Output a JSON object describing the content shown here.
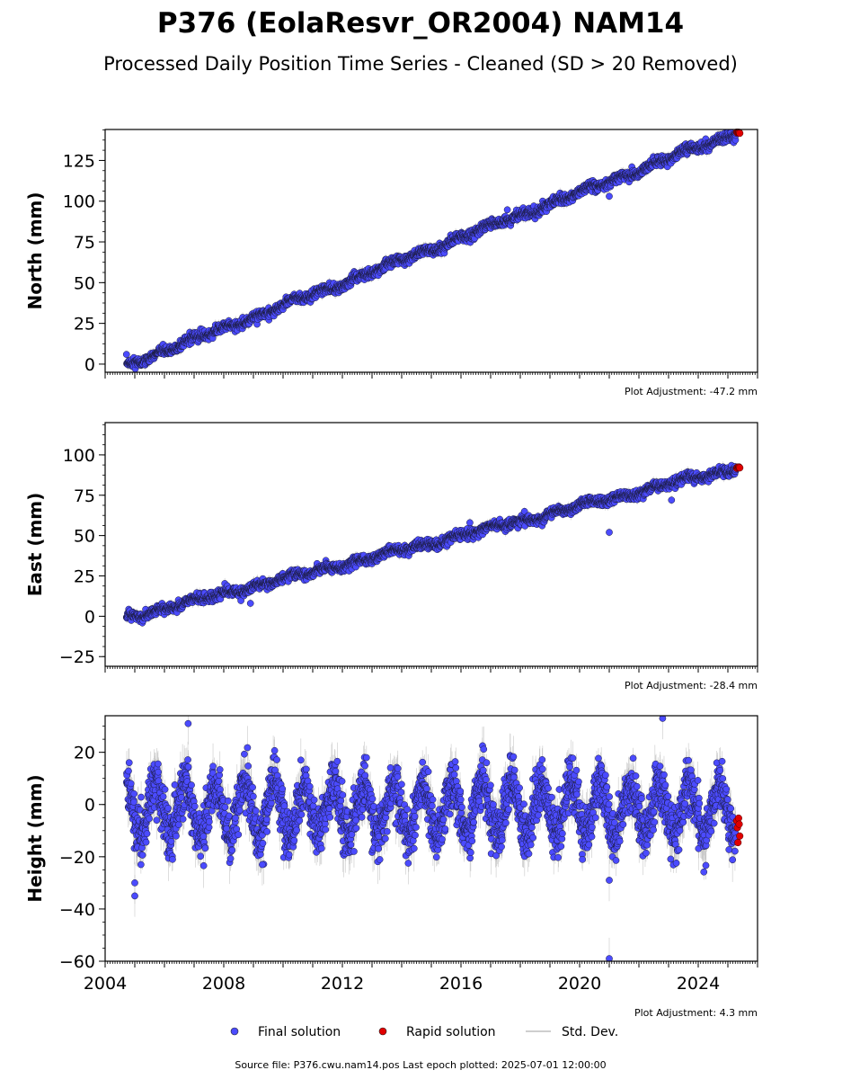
{
  "title": "P376 (EolaResvr_OR2004) NAM14",
  "subtitle": "Processed Daily Position Time Series - Cleaned (SD > 20 Removed)",
  "source_note": "Source file: P376.cwu.nam14.pos  Last epoch plotted: 2025-07-01 12:00:00",
  "legend": {
    "final": "Final solution",
    "rapid": "Rapid solution",
    "std": "Std. Dev."
  },
  "colors": {
    "final": "#4b4bff",
    "rapid": "#e00000",
    "std": "#b0b0b0"
  },
  "chart_data": [
    {
      "type": "scatter",
      "ylabel": "North (mm)",
      "xlim": [
        2004.0,
        2026.0
      ],
      "ylim": [
        -5,
        144
      ],
      "x_ticks": [
        2004,
        2008,
        2012,
        2016,
        2020,
        2024
      ],
      "y_ticks": [
        0,
        25,
        50,
        75,
        100,
        125
      ],
      "adjustment": "Plot Adjustment: -47.2 mm",
      "trend": {
        "x": [
          2004.7,
          2025.3
        ],
        "y": [
          -1,
          142
        ]
      },
      "outliers": [
        {
          "x": 2021.0,
          "y": 103
        }
      ],
      "rapid": {
        "x": [
          2025.3,
          2025.4
        ],
        "y": [
          142,
          142
        ]
      }
    },
    {
      "type": "scatter",
      "ylabel": "East (mm)",
      "xlim": [
        2004.0,
        2026.0
      ],
      "ylim": [
        -31,
        120
      ],
      "x_ticks": [
        2004,
        2008,
        2012,
        2016,
        2020,
        2024
      ],
      "y_ticks": [
        -25,
        0,
        25,
        50,
        75,
        100
      ],
      "adjustment": "Plot Adjustment: -28.4 mm",
      "trend": {
        "x": [
          2004.7,
          2025.3
        ],
        "y": [
          -1,
          92
        ]
      },
      "outliers": [
        {
          "x": 2021.0,
          "y": 52
        },
        {
          "x": 2016.3,
          "y": 58
        },
        {
          "x": 2008.9,
          "y": 8
        },
        {
          "x": 2023.1,
          "y": 72
        }
      ],
      "rapid": {
        "x": [
          2025.3,
          2025.4
        ],
        "y": [
          92,
          92
        ]
      }
    },
    {
      "type": "scatter",
      "ylabel": "Height (mm)",
      "xlim": [
        2004.0,
        2026.0
      ],
      "ylim": [
        -60,
        34
      ],
      "x_ticks": [
        2004,
        2008,
        2012,
        2016,
        2020,
        2024
      ],
      "x_tick_labels": [
        "2004",
        "2008",
        "2012",
        "2016",
        "2020",
        "2024"
      ],
      "y_ticks": [
        -60,
        -40,
        -20,
        0,
        20
      ],
      "adjustment": "Plot Adjustment: 4.3 mm",
      "seasonal": {
        "mean": -2,
        "amplitude": 10,
        "period_years": 1
      },
      "outliers": [
        {
          "x": 2005.0,
          "y": -35
        },
        {
          "x": 2005.0,
          "y": -30
        },
        {
          "x": 2006.8,
          "y": 31
        },
        {
          "x": 2021.0,
          "y": -59
        },
        {
          "x": 2021.0,
          "y": -29
        },
        {
          "x": 2022.8,
          "y": 33
        },
        {
          "x": 2009.3,
          "y": -23
        }
      ],
      "rapid": {
        "x": [
          2025.3,
          2025.4
        ],
        "y_range": [
          -15,
          -5
        ]
      }
    }
  ]
}
